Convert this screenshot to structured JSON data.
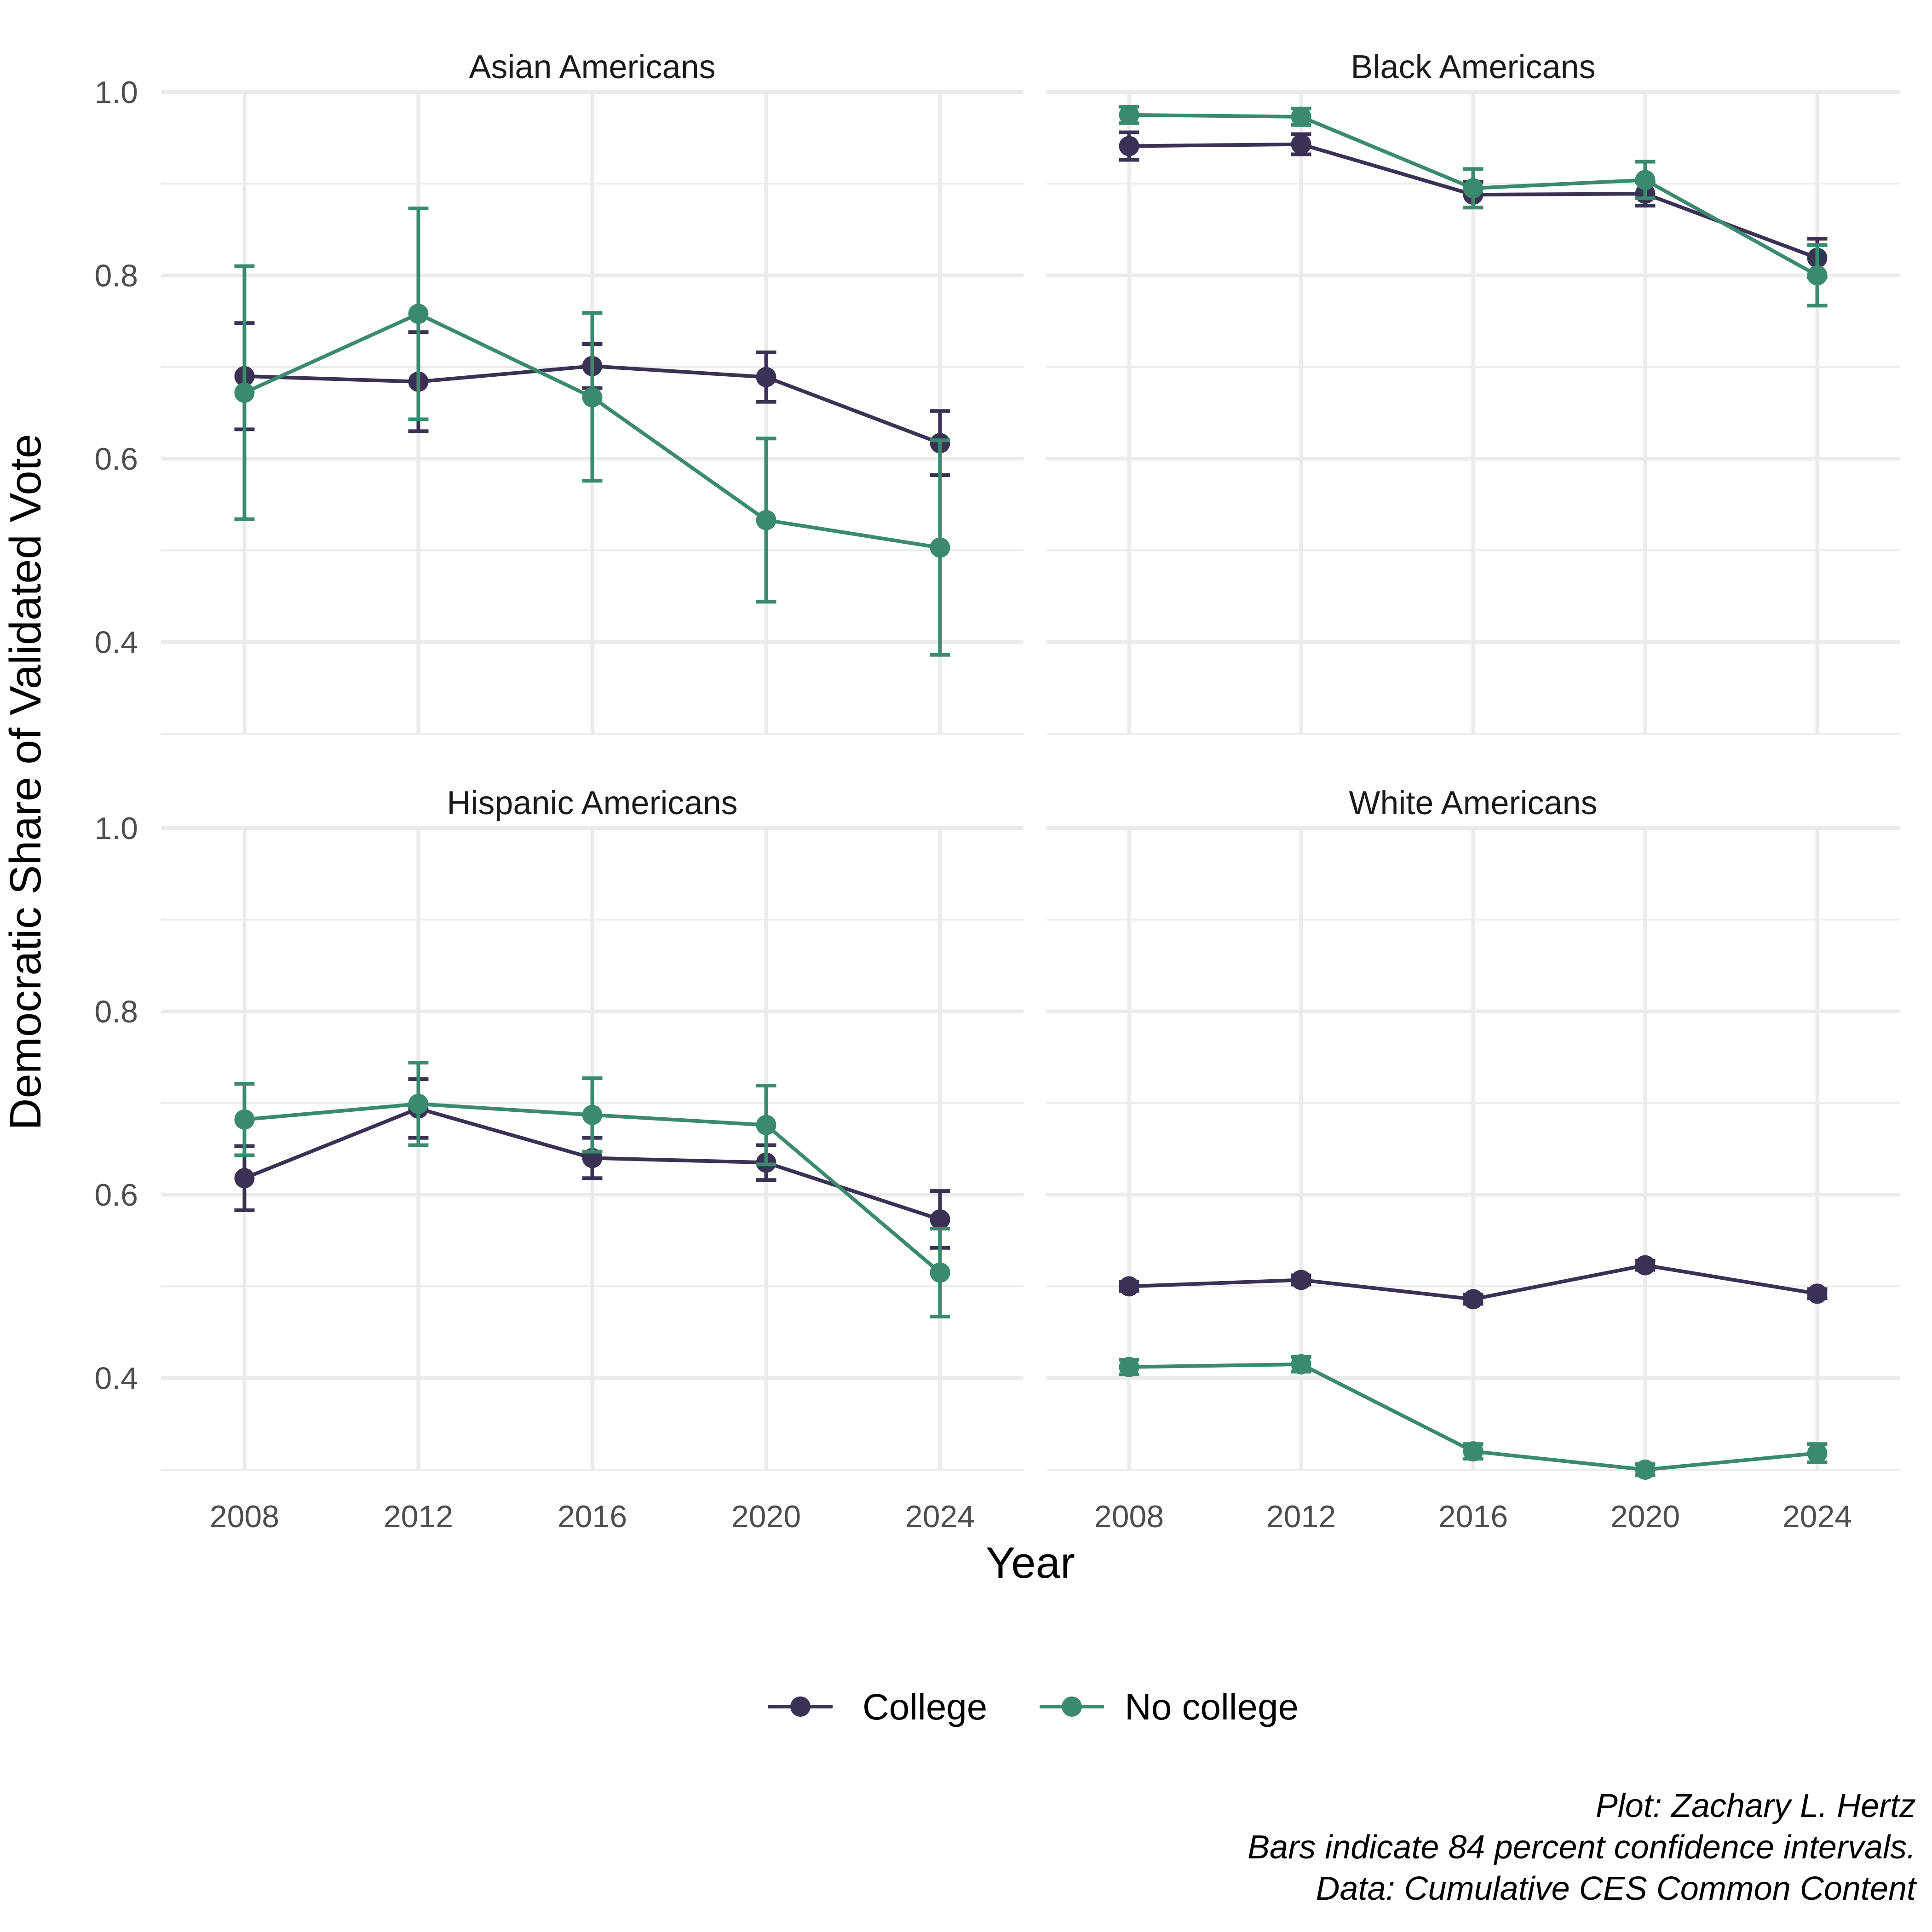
{
  "chart_data": {
    "type": "line",
    "layout": "facet-2x2",
    "xlabel": "Year",
    "ylabel": "Democratic Share of Validated Vote",
    "x_ticks": [
      2008,
      2012,
      2016,
      2020,
      2024
    ],
    "xlim": [
      2008,
      2024
    ],
    "ylim": [
      0.3,
      1.0
    ],
    "y_ticks": [
      0.4,
      0.6,
      0.8,
      1.0
    ],
    "grid": true,
    "legend": {
      "placement": "bottom",
      "entries": [
        {
          "name": "College",
          "color": "#3b3154"
        },
        {
          "name": "No college",
          "color": "#3a8a6e"
        }
      ]
    },
    "caption": [
      "Plot: Zachary L. Hertz",
      "Bars indicate 84 percent confidence intervals.",
      "Data: Cumulative CES Common Content"
    ],
    "facets": [
      {
        "title": "Asian Americans",
        "series": [
          {
            "name": "College",
            "x": [
              2008,
              2012,
              2016,
              2020,
              2024
            ],
            "values": [
              0.69,
              0.684,
              0.701,
              0.689,
              0.617
            ],
            "lower": [
              0.632,
              0.63,
              0.677,
              0.662,
              0.582
            ],
            "upper": [
              0.748,
              0.738,
              0.725,
              0.716,
              0.652
            ]
          },
          {
            "name": "No college",
            "x": [
              2008,
              2012,
              2016,
              2020,
              2024
            ],
            "values": [
              0.672,
              0.758,
              0.667,
              0.533,
              0.503
            ],
            "lower": [
              0.534,
              0.643,
              0.576,
              0.444,
              0.386
            ],
            "upper": [
              0.81,
              0.873,
              0.759,
              0.622,
              0.62
            ]
          }
        ]
      },
      {
        "title": "Black Americans",
        "series": [
          {
            "name": "College",
            "x": [
              2008,
              2012,
              2016,
              2020,
              2024
            ],
            "values": [
              0.941,
              0.943,
              0.888,
              0.889,
              0.819
            ],
            "lower": [
              0.926,
              0.932,
              0.874,
              0.876,
              0.798
            ],
            "upper": [
              0.956,
              0.954,
              0.902,
              0.902,
              0.84
            ]
          },
          {
            "name": "No college",
            "x": [
              2008,
              2012,
              2016,
              2020,
              2024
            ],
            "values": [
              0.975,
              0.973,
              0.895,
              0.904,
              0.8
            ],
            "lower": [
              0.966,
              0.964,
              0.874,
              0.884,
              0.767
            ],
            "upper": [
              0.984,
              0.982,
              0.916,
              0.924,
              0.833
            ]
          }
        ]
      },
      {
        "title": "Hispanic Americans",
        "series": [
          {
            "name": "College",
            "x": [
              2008,
              2012,
              2016,
              2020,
              2024
            ],
            "values": [
              0.618,
              0.694,
              0.64,
              0.635,
              0.573
            ],
            "lower": [
              0.583,
              0.662,
              0.618,
              0.616,
              0.542
            ],
            "upper": [
              0.653,
              0.726,
              0.662,
              0.654,
              0.604
            ]
          },
          {
            "name": "No college",
            "x": [
              2008,
              2012,
              2016,
              2020,
              2024
            ],
            "values": [
              0.682,
              0.699,
              0.687,
              0.676,
              0.515
            ],
            "lower": [
              0.643,
              0.654,
              0.647,
              0.633,
              0.467
            ],
            "upper": [
              0.721,
              0.744,
              0.727,
              0.719,
              0.563
            ]
          }
        ]
      },
      {
        "title": "White Americans",
        "series": [
          {
            "name": "College",
            "x": [
              2008,
              2012,
              2016,
              2020,
              2024
            ],
            "values": [
              0.5,
              0.507,
              0.486,
              0.523,
              0.492
            ],
            "lower": [
              0.495,
              0.502,
              0.481,
              0.518,
              0.487
            ],
            "upper": [
              0.505,
              0.512,
              0.491,
              0.528,
              0.497
            ]
          },
          {
            "name": "No college",
            "x": [
              2008,
              2012,
              2016,
              2020,
              2024
            ],
            "values": [
              0.412,
              0.415,
              0.32,
              0.3,
              0.318
            ],
            "lower": [
              0.404,
              0.407,
              0.312,
              0.294,
              0.308
            ],
            "upper": [
              0.42,
              0.423,
              0.328,
              0.306,
              0.328
            ]
          }
        ]
      }
    ]
  }
}
